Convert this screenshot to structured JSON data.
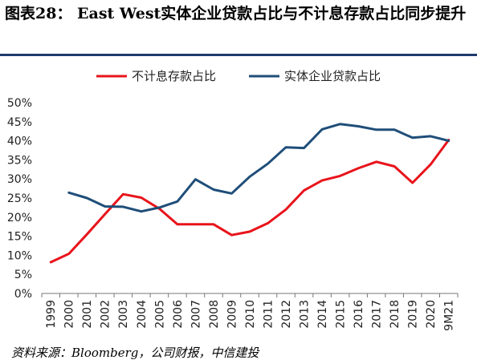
{
  "header": {
    "title": "图表28： East West实体企业贷款占比与不计息存款占比同步提升"
  },
  "footer": {
    "source": "资料来源：Bloomberg，公司财报，中信建投"
  },
  "chart_data": {
    "type": "line",
    "title": "",
    "xlabel": "",
    "ylabel": "",
    "ylim": [
      0,
      50
    ],
    "y_ticks": [
      "0%",
      "5%",
      "10%",
      "15%",
      "20%",
      "25%",
      "30%",
      "35%",
      "40%",
      "45%",
      "50%"
    ],
    "grid": false,
    "legend_position": "top",
    "categories": [
      "1999",
      "2000",
      "2001",
      "2002",
      "2003",
      "2004",
      "2005",
      "2006",
      "2007",
      "2008",
      "2009",
      "2010",
      "2011",
      "2012",
      "2013",
      "2014",
      "2015",
      "2016",
      "2017",
      "2018",
      "2019",
      "2020",
      "9M21"
    ],
    "series": [
      {
        "name": "不计息存款占比",
        "color": "#e8141b",
        "values": [
          8.2,
          10.4,
          15.5,
          20.8,
          26.0,
          25.1,
          22.2,
          18.1,
          18.1,
          18.1,
          15.3,
          16.2,
          18.4,
          22.0,
          27.0,
          29.6,
          30.8,
          32.8,
          34.5,
          33.3,
          29.0,
          33.8,
          40.2
        ]
      },
      {
        "name": "实体企业贷款占比",
        "color": "#1f4e79",
        "values": [
          null,
          26.4,
          25.0,
          22.8,
          22.7,
          21.5,
          22.5,
          24.1,
          29.9,
          27.2,
          26.2,
          30.6,
          34.0,
          38.3,
          38.1,
          43.0,
          44.4,
          43.8,
          42.9,
          42.9,
          40.8,
          41.2,
          40.0
        ]
      }
    ]
  }
}
